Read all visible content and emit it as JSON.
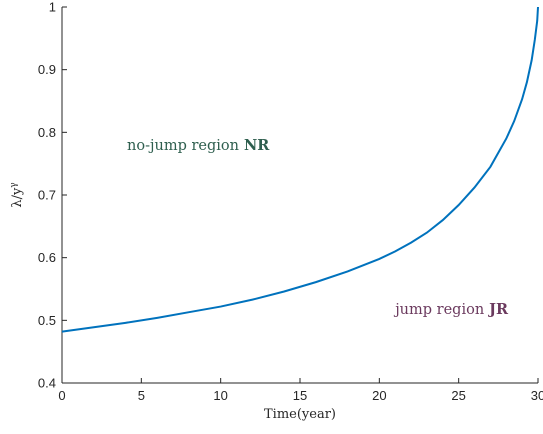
{
  "chart_data": {
    "type": "line",
    "xlabel": "Time(year)",
    "ylabel": "λ/y^γ",
    "ylabel_main": "λ/y",
    "ylabel_sup": "γ",
    "xlim": [
      0,
      30
    ],
    "ylim": [
      0.4,
      1.0
    ],
    "x_ticks": [
      0,
      5,
      10,
      15,
      20,
      25,
      30
    ],
    "x_tick_labels": [
      "0",
      "5",
      "10",
      "15",
      "20",
      "25",
      "30"
    ],
    "y_ticks": [
      0.4,
      0.5,
      0.6,
      0.7,
      0.8,
      0.9,
      1.0
    ],
    "y_tick_labels": [
      "0.4",
      "0.5",
      "0.6",
      "0.7",
      "0.8",
      "0.9",
      "1"
    ],
    "grid": false,
    "series": [
      {
        "color": "#0072BD",
        "x": [
          0,
          2,
          4,
          6,
          8,
          10,
          12,
          14,
          16,
          18,
          20,
          21,
          22,
          23,
          24,
          25,
          26,
          27,
          28,
          28.5,
          29,
          29.3,
          29.6,
          29.8,
          29.95,
          30
        ],
        "y": [
          0.482,
          0.489,
          0.496,
          0.504,
          0.513,
          0.522,
          0.533,
          0.546,
          0.561,
          0.578,
          0.598,
          0.61,
          0.624,
          0.64,
          0.66,
          0.684,
          0.712,
          0.745,
          0.79,
          0.818,
          0.853,
          0.88,
          0.915,
          0.948,
          0.978,
          1.0
        ]
      }
    ],
    "annotations": [
      {
        "text": "no-jump region",
        "bold": "NR",
        "color": "#2f5f4f",
        "x": 4.1,
        "y": 0.78
      },
      {
        "text": "jump region",
        "bold": "JR",
        "color": "#6b3a5e",
        "x": 21.0,
        "y": 0.518
      }
    ]
  }
}
